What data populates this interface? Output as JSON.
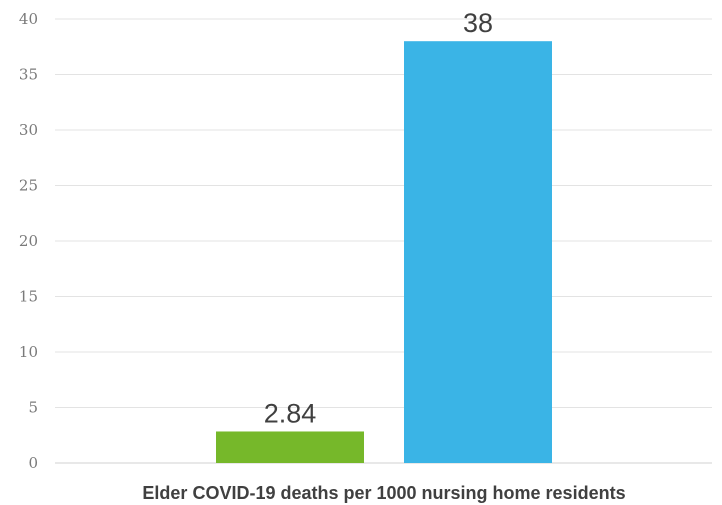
{
  "chart_data": {
    "type": "bar",
    "title": "",
    "xlabel": "Elder COVID-19 deaths per 1000 nursing home residents",
    "ylabel": "",
    "ylim": [
      0,
      40
    ],
    "yticks": [
      0,
      5,
      10,
      15,
      20,
      25,
      30,
      35,
      40
    ],
    "grid": true,
    "legend": "none",
    "categories": [
      "",
      ""
    ],
    "values": [
      2.84,
      38
    ],
    "data_labels": [
      "2.84",
      "38"
    ],
    "colors": [
      "#76b82a",
      "#3ab4e6"
    ]
  }
}
